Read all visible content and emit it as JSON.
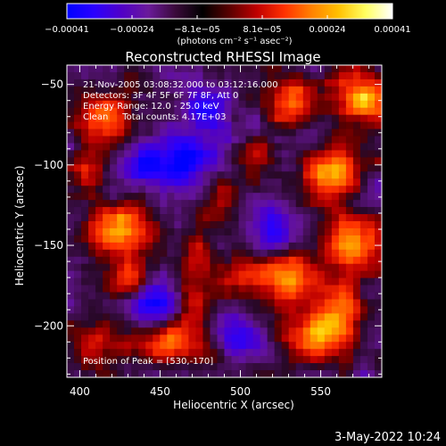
{
  "chart_data": {
    "type": "heatmap",
    "title": "Reconstructed RHESSI Image",
    "xlabel": "Heliocentric X (arcsec)",
    "ylabel": "Heliocentric Y (arcsec)",
    "xlim": [
      392,
      588
    ],
    "ylim": [
      -232,
      -38
    ],
    "x_ticks": [
      400,
      450,
      500,
      550
    ],
    "y_ticks": [
      -50,
      -100,
      -150,
      -200
    ],
    "y_tick_labels": [
      "−50",
      "−100",
      "−150",
      "−200"
    ],
    "colorbar": {
      "min": -0.00041,
      "max": 0.00041,
      "tick_labels": [
        "−0.00041",
        "−0.00024",
        "−8.1e−05",
        "8.1e−05",
        "0.00024",
        "0.00041"
      ],
      "units_label": "(photons cm⁻² s⁻¹ asec⁻²)",
      "colors": [
        "#0000ff",
        "#2a00ff",
        "#5000c8",
        "#6a1a9a",
        "#3a0a3a",
        "#000000",
        "#5a0000",
        "#c00000",
        "#ff3000",
        "#ff8000",
        "#ffc000",
        "#ffff60",
        "#ffffff"
      ]
    },
    "annotations": [
      "21-Nov-2005 03:08:32.000 to 03:12:16.000",
      "Detectors: 3F 4F 5F 6F 7F 8F, Att 0",
      "Energy Range: 12.0 - 25.0 keV",
      "Clean     Total counts: 4.17E+03"
    ],
    "peak_label": "Position of Peak = [530,-170]",
    "peak": [
      530,
      -170
    ],
    "sources": [
      {
        "x": 578,
        "y": -58,
        "sx": 14,
        "sy": 14,
        "a": 1.0
      },
      {
        "x": 532,
        "y": -60,
        "sx": 10,
        "sy": 10,
        "a": 0.85
      },
      {
        "x": 555,
        "y": -105,
        "sx": 12,
        "sy": 12,
        "a": 0.95
      },
      {
        "x": 572,
        "y": -148,
        "sx": 13,
        "sy": 13,
        "a": 1.0
      },
      {
        "x": 530,
        "y": -170,
        "sx": 12,
        "sy": 12,
        "a": 1.0
      },
      {
        "x": 548,
        "y": -205,
        "sx": 14,
        "sy": 12,
        "a": 0.95
      },
      {
        "x": 425,
        "y": -140,
        "sx": 14,
        "sy": 10,
        "a": 1.0
      },
      {
        "x": 415,
        "y": -70,
        "sx": 12,
        "sy": 12,
        "a": 0.75
      },
      {
        "x": 405,
        "y": -105,
        "sx": 8,
        "sy": 10,
        "a": 0.7
      },
      {
        "x": 430,
        "y": -172,
        "sx": 10,
        "sy": 10,
        "a": 0.7
      },
      {
        "x": 455,
        "y": -210,
        "sx": 14,
        "sy": 10,
        "a": 0.75
      },
      {
        "x": 472,
        "y": -175,
        "sx": 8,
        "sy": 22,
        "a": 0.65
      },
      {
        "x": 490,
        "y": -120,
        "sx": 9,
        "sy": 9,
        "a": 0.6
      },
      {
        "x": 500,
        "y": -170,
        "sx": 9,
        "sy": 8,
        "a": 0.55
      },
      {
        "x": 510,
        "y": -95,
        "sx": 8,
        "sy": 8,
        "a": 0.5
      },
      {
        "x": 565,
        "y": -185,
        "sx": 8,
        "sy": 10,
        "a": 0.8
      },
      {
        "x": 410,
        "y": -215,
        "sx": 10,
        "sy": 10,
        "a": 0.6
      }
    ],
    "negatives": [
      {
        "x": 465,
        "y": -95,
        "sx": 12,
        "sy": 12,
        "a": 0.9
      },
      {
        "x": 440,
        "y": -100,
        "sx": 9,
        "sy": 9,
        "a": 0.7
      },
      {
        "x": 445,
        "y": -185,
        "sx": 10,
        "sy": 10,
        "a": 0.8
      },
      {
        "x": 520,
        "y": -140,
        "sx": 9,
        "sy": 9,
        "a": 0.6
      },
      {
        "x": 500,
        "y": -205,
        "sx": 10,
        "sy": 8,
        "a": 0.6
      },
      {
        "x": 480,
        "y": -65,
        "sx": 9,
        "sy": 9,
        "a": 0.55
      }
    ]
  },
  "footer": {
    "date_stamp": "3-May-2022 10:24"
  }
}
